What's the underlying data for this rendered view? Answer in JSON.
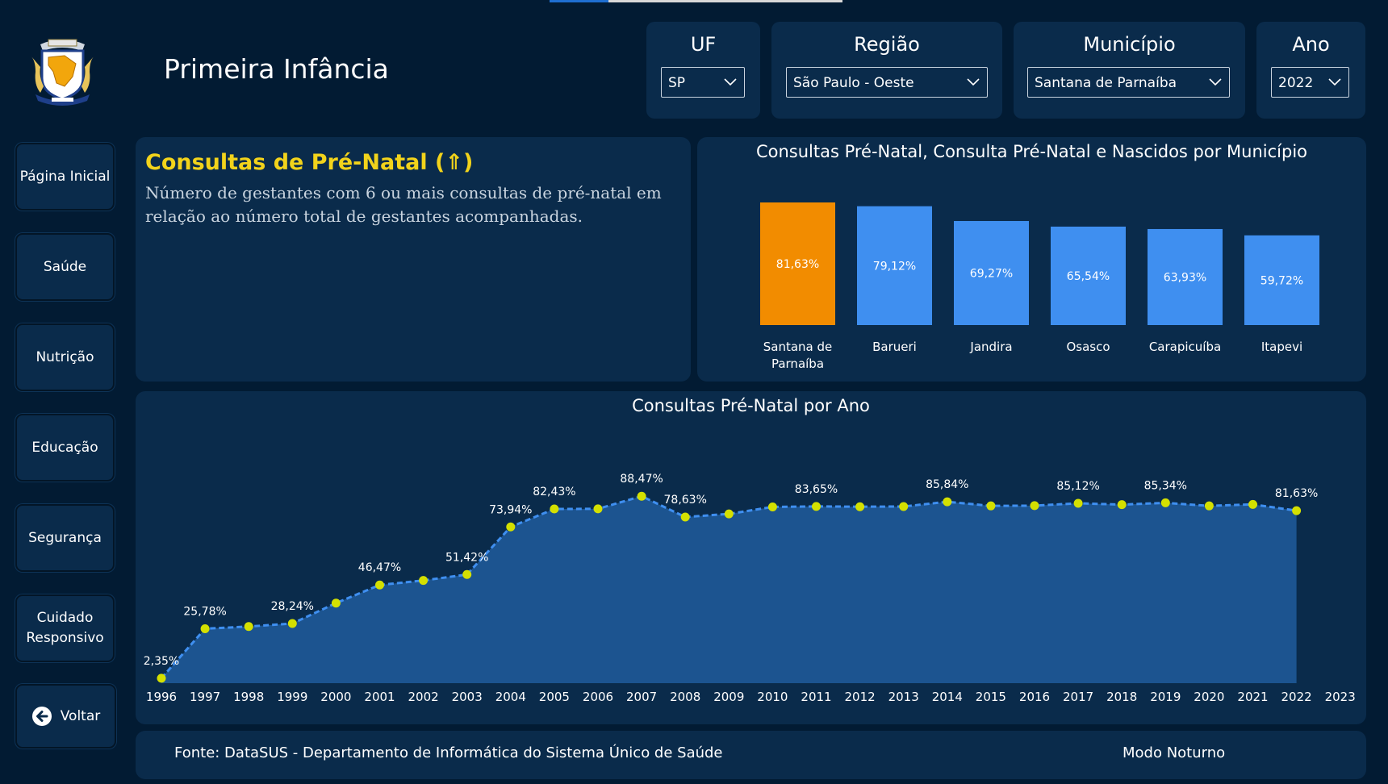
{
  "app": {
    "title": "Primeira Infância"
  },
  "colors": {
    "background": "#021b33",
    "panel": "#0a2b4b",
    "highlight_bar": "#f28c00",
    "bar": "#3f8ff0",
    "area": "#1c5490",
    "line": "#3f8ff0",
    "marker": "#d4e000",
    "kpi_title": "#f2d31b"
  },
  "filters": [
    {
      "label": "UF",
      "value": "SP"
    },
    {
      "label": "Região",
      "value": "São Paulo - Oeste"
    },
    {
      "label": "Município",
      "value": "Santana de Parnaíba"
    },
    {
      "label": "Ano",
      "value": "2022"
    }
  ],
  "nav": {
    "home": "Página Inicial",
    "health": "Saúde",
    "nutrition": "Nutrição",
    "education": "Educação",
    "security": "Segurança",
    "care_line1": "Cuidado",
    "care_line2": "Responsivo",
    "back": "Voltar",
    "back_icon": "arrow-left-circle-icon"
  },
  "kpi": {
    "title": "Consultas de Pré-Natal (⇑)",
    "description": "Número de gestantes com 6 ou mais consultas de pré-natal em relação ao número total de gestantes acompanhadas."
  },
  "chart_data": [
    {
      "type": "bar",
      "title": "Consultas Pré-Natal, Consulta Pré-Natal e Nascidos por Município",
      "categories": [
        "Santana de Parnaíba",
        "Barueri",
        "Jandira",
        "Osasco",
        "Carapicuíba",
        "Itapevi"
      ],
      "values": [
        81.63,
        79.12,
        69.27,
        65.54,
        63.93,
        59.72
      ],
      "labels": [
        "81,63%",
        "79,12%",
        "69,27%",
        "65,54%",
        "63,93%",
        "59,72%"
      ],
      "highlighted": "Santana de Parnaíba"
    },
    {
      "type": "area",
      "title": "Consultas Pré-Natal por Ano",
      "x": [
        "1996",
        "1997",
        "1998",
        "1999",
        "2000",
        "2001",
        "2002",
        "2003",
        "2004",
        "2005",
        "2006",
        "2007",
        "2008",
        "2009",
        "2010",
        "2011",
        "2012",
        "2013",
        "2014",
        "2015",
        "2016",
        "2017",
        "2018",
        "2019",
        "2020",
        "2021",
        "2022",
        "2023"
      ],
      "values": [
        2.35,
        25.78,
        26.8,
        28.24,
        37.9,
        46.47,
        48.6,
        51.42,
        73.94,
        82.43,
        82.5,
        88.47,
        78.63,
        80.1,
        83.4,
        83.65,
        83.5,
        83.6,
        85.84,
        83.9,
        84.0,
        85.12,
        84.5,
        85.34,
        83.9,
        84.6,
        81.63,
        null
      ],
      "point_labels": {
        "1996": "2,35%",
        "1997": "25,78%",
        "1999": "28,24%",
        "2001": "46,47%",
        "2003": "51,42%",
        "2004": "73,94%",
        "2005": "82,43%",
        "2007": "88,47%",
        "2008": "78,63%",
        "2011": "83,65%",
        "2014": "85,84%",
        "2017": "85,12%",
        "2019": "85,34%",
        "2022": "81,63%"
      },
      "ylim": [
        0,
        100
      ]
    }
  ],
  "footer": {
    "source": "Fonte: DataSUS - Departamento de Informática do Sistema Único de Saúde",
    "mode": "Modo Noturno"
  }
}
